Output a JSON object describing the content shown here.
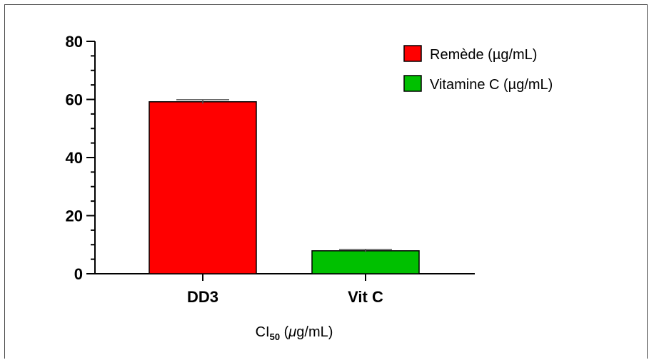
{
  "chart_data": {
    "type": "bar",
    "title": "",
    "categories": [
      "DD3",
      "Vit C"
    ],
    "values": [
      59.2,
      7.9
    ],
    "errors": [
      0.7,
      0.5
    ],
    "colors": [
      "#ff0000",
      "#00c000"
    ],
    "ylim": [
      0,
      80
    ],
    "yticks": [
      0,
      20,
      40,
      60,
      80
    ],
    "ylabel": "",
    "xlabel": {
      "main": "CI",
      "subscript": "50",
      "suffix_open": " (",
      "mu": "μ",
      "suffix_close": "g/mL)"
    },
    "legend": [
      {
        "label": "Remède (µg/mL)",
        "color": "#ff0000"
      },
      {
        "label": "Vitamine C (µg/mL)",
        "color": "#00c000"
      }
    ]
  }
}
